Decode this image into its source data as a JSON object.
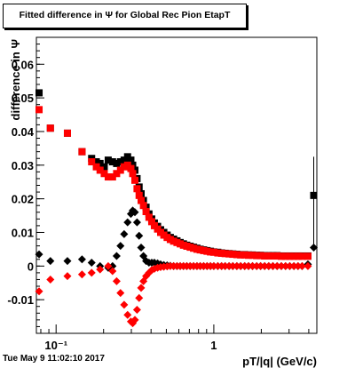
{
  "header": {
    "title": "Fitted difference in  Ψ  for Global Rec Pion EtapT"
  },
  "footer": {
    "timestamp": "Tue May  9 11:02:10 2017"
  },
  "chart_data": {
    "type": "scatter",
    "title": "Fitted difference in  Ψ  for Global Rec Pion EtapT",
    "xlabel": "pT/|q| (GeV/c)",
    "ylabel": "difference in  Ψ",
    "x_scale": "log",
    "xlim": [
      0.075,
      4.5
    ],
    "ylim": [
      -0.02,
      0.068
    ],
    "x_tick_labels": [
      {
        "x": 0.1,
        "label": "10⁻¹"
      },
      {
        "x": 1,
        "label": "1"
      }
    ],
    "y_ticks": [
      -0.01,
      0,
      0.01,
      0.02,
      0.03,
      0.04,
      0.05,
      0.06
    ],
    "y_tick_labels": [
      "-0.01",
      "0",
      "0.01",
      "0.02",
      "0.03",
      "0.04",
      "0.05",
      "0.06"
    ],
    "grid": false,
    "series": [
      {
        "marker": "square",
        "color": "#000000",
        "points": [
          [
            0.078,
            0.0515
          ],
          [
            0.092,
            0.041
          ],
          [
            0.118,
            0.0395
          ],
          [
            0.146,
            0.034
          ],
          [
            0.168,
            0.032
          ],
          [
            0.18,
            0.031
          ],
          [
            0.19,
            0.0305
          ],
          [
            0.202,
            0.0295
          ],
          [
            0.214,
            0.0315
          ],
          [
            0.228,
            0.031
          ],
          [
            0.242,
            0.0305
          ],
          [
            0.256,
            0.031
          ],
          [
            0.27,
            0.0315
          ],
          [
            0.284,
            0.0325
          ],
          [
            0.298,
            0.0315
          ],
          [
            0.306,
            0.03
          ],
          [
            0.316,
            0.0285
          ],
          [
            0.326,
            0.026
          ],
          [
            0.336,
            0.0235
          ],
          [
            0.346,
            0.0215
          ],
          [
            0.358,
            0.0195
          ],
          [
            0.372,
            0.0175
          ],
          [
            0.388,
            0.0155
          ],
          [
            0.404,
            0.014
          ],
          [
            0.42,
            0.0128
          ],
          [
            0.44,
            0.0118
          ],
          [
            0.46,
            0.0108
          ],
          [
            0.482,
            0.01
          ],
          [
            0.506,
            0.0092
          ],
          [
            0.53,
            0.0085
          ],
          [
            0.556,
            0.008
          ],
          [
            0.584,
            0.0075
          ],
          [
            0.612,
            0.007
          ],
          [
            0.642,
            0.0066
          ],
          [
            0.674,
            0.0062
          ],
          [
            0.708,
            0.0059
          ],
          [
            0.744,
            0.0056
          ],
          [
            0.782,
            0.0053
          ],
          [
            0.82,
            0.005
          ],
          [
            0.862,
            0.0048
          ],
          [
            0.906,
            0.0046
          ],
          [
            0.952,
            0.0044
          ],
          [
            1.0,
            0.0042
          ],
          [
            1.06,
            0.0041
          ],
          [
            1.12,
            0.0039
          ],
          [
            1.18,
            0.0038
          ],
          [
            1.25,
            0.0037
          ],
          [
            1.32,
            0.0036
          ],
          [
            1.4,
            0.0035
          ],
          [
            1.48,
            0.0034
          ],
          [
            1.57,
            0.0034
          ],
          [
            1.66,
            0.0033
          ],
          [
            1.76,
            0.0033
          ],
          [
            1.87,
            0.0032
          ],
          [
            1.98,
            0.0032
          ],
          [
            2.1,
            0.0031
          ],
          [
            2.23,
            0.0031
          ],
          [
            2.37,
            0.0031
          ],
          [
            2.52,
            0.0031
          ],
          [
            2.68,
            0.003
          ],
          [
            2.85,
            0.003
          ],
          [
            3.03,
            0.003
          ],
          [
            3.22,
            0.003
          ],
          [
            3.42,
            0.003
          ],
          [
            3.63,
            0.003
          ],
          [
            3.95,
            0.003
          ],
          [
            4.3,
            0.021
          ]
        ]
      },
      {
        "marker": "square",
        "color": "#ff0000",
        "points": [
          [
            0.078,
            0.0465
          ],
          [
            0.092,
            0.041
          ],
          [
            0.118,
            0.0395
          ],
          [
            0.146,
            0.034
          ],
          [
            0.168,
            0.031
          ],
          [
            0.18,
            0.0295
          ],
          [
            0.19,
            0.0285
          ],
          [
            0.202,
            0.0275
          ],
          [
            0.214,
            0.0265
          ],
          [
            0.228,
            0.0265
          ],
          [
            0.242,
            0.0275
          ],
          [
            0.256,
            0.0285
          ],
          [
            0.27,
            0.0295
          ],
          [
            0.284,
            0.03
          ],
          [
            0.298,
            0.029
          ],
          [
            0.306,
            0.0275
          ],
          [
            0.316,
            0.0255
          ],
          [
            0.326,
            0.023
          ],
          [
            0.336,
            0.021
          ],
          [
            0.346,
            0.0195
          ],
          [
            0.358,
            0.018
          ],
          [
            0.372,
            0.0162
          ],
          [
            0.388,
            0.0145
          ],
          [
            0.404,
            0.0132
          ],
          [
            0.42,
            0.012
          ],
          [
            0.44,
            0.011
          ],
          [
            0.46,
            0.01
          ],
          [
            0.482,
            0.0092
          ],
          [
            0.506,
            0.0085
          ],
          [
            0.53,
            0.0079
          ],
          [
            0.556,
            0.0074
          ],
          [
            0.584,
            0.007
          ],
          [
            0.612,
            0.0066
          ],
          [
            0.642,
            0.0062
          ],
          [
            0.674,
            0.0059
          ],
          [
            0.708,
            0.0056
          ],
          [
            0.744,
            0.0053
          ],
          [
            0.782,
            0.005
          ],
          [
            0.82,
            0.0048
          ],
          [
            0.862,
            0.0046
          ],
          [
            0.906,
            0.0044
          ],
          [
            0.952,
            0.0042
          ],
          [
            1.0,
            0.0041
          ],
          [
            1.06,
            0.0039
          ],
          [
            1.12,
            0.0038
          ],
          [
            1.18,
            0.0037
          ],
          [
            1.25,
            0.0036
          ],
          [
            1.32,
            0.0035
          ],
          [
            1.4,
            0.0034
          ],
          [
            1.48,
            0.0033
          ],
          [
            1.57,
            0.0033
          ],
          [
            1.66,
            0.0032
          ],
          [
            1.76,
            0.0032
          ],
          [
            1.87,
            0.0031
          ],
          [
            1.98,
            0.0031
          ],
          [
            2.1,
            0.003
          ],
          [
            2.23,
            0.003
          ],
          [
            2.37,
            0.003
          ],
          [
            2.52,
            0.003
          ],
          [
            2.68,
            0.0029
          ],
          [
            2.85,
            0.0029
          ],
          [
            3.03,
            0.0029
          ],
          [
            3.22,
            0.0029
          ],
          [
            3.42,
            0.0029
          ],
          [
            3.63,
            0.0029
          ],
          [
            3.95,
            0.0029
          ]
        ]
      },
      {
        "marker": "diamond",
        "color": "#000000",
        "points": [
          [
            0.078,
            0.0035
          ],
          [
            0.092,
            0.0015
          ],
          [
            0.118,
            0.0015
          ],
          [
            0.146,
            0.002
          ],
          [
            0.168,
            0.001
          ],
          [
            0.19,
            0.0
          ],
          [
            0.214,
            -0.0005
          ],
          [
            0.228,
            0.0
          ],
          [
            0.242,
            0.003
          ],
          [
            0.256,
            0.006
          ],
          [
            0.27,
            0.0095
          ],
          [
            0.284,
            0.013
          ],
          [
            0.298,
            0.0155
          ],
          [
            0.306,
            0.0165
          ],
          [
            0.316,
            0.016
          ],
          [
            0.326,
            0.013
          ],
          [
            0.336,
            0.009
          ],
          [
            0.346,
            0.0055
          ],
          [
            0.358,
            0.003
          ],
          [
            0.372,
            0.0015
          ],
          [
            0.388,
            0.001
          ],
          [
            0.404,
            0.001
          ],
          [
            0.42,
            0.001
          ],
          [
            0.44,
            0.0008
          ],
          [
            0.46,
            0.0005
          ],
          [
            0.482,
            0.0003
          ],
          [
            0.506,
            0.0002
          ],
          [
            0.53,
            0.0001
          ],
          [
            0.556,
            0.0
          ],
          [
            0.584,
            0.0
          ],
          [
            0.612,
            0.0
          ],
          [
            0.642,
            0.0
          ],
          [
            0.674,
            0.0
          ],
          [
            0.708,
            0.0
          ],
          [
            0.744,
            0.0
          ],
          [
            0.782,
            0.0
          ],
          [
            0.82,
            0.0
          ],
          [
            0.862,
            0.0
          ],
          [
            0.906,
            0.0
          ],
          [
            0.952,
            0.0
          ],
          [
            1.0,
            0.0
          ],
          [
            1.06,
            0.0
          ],
          [
            1.12,
            0.0
          ],
          [
            1.18,
            0.0
          ],
          [
            1.25,
            0.0
          ],
          [
            1.32,
            0.0
          ],
          [
            1.4,
            0.0
          ],
          [
            1.48,
            0.0
          ],
          [
            1.57,
            0.0
          ],
          [
            1.66,
            0.0
          ],
          [
            1.76,
            0.0
          ],
          [
            1.87,
            0.0
          ],
          [
            1.98,
            0.0
          ],
          [
            2.1,
            0.0
          ],
          [
            2.23,
            0.0
          ],
          [
            2.37,
            0.0
          ],
          [
            2.52,
            0.0
          ],
          [
            2.68,
            0.0
          ],
          [
            2.85,
            0.0
          ],
          [
            3.03,
            0.0
          ],
          [
            3.22,
            0.0
          ],
          [
            3.42,
            0.0
          ],
          [
            3.63,
            0.0
          ],
          [
            3.95,
            0.0005
          ],
          [
            4.3,
            0.0055
          ]
        ]
      },
      {
        "marker": "diamond",
        "color": "#ff0000",
        "points": [
          [
            0.078,
            -0.0075
          ],
          [
            0.092,
            -0.004
          ],
          [
            0.118,
            -0.003
          ],
          [
            0.146,
            -0.0025
          ],
          [
            0.168,
            -0.002
          ],
          [
            0.19,
            -0.001
          ],
          [
            0.214,
            0.0
          ],
          [
            0.228,
            -0.0015
          ],
          [
            0.242,
            -0.0045
          ],
          [
            0.256,
            -0.008
          ],
          [
            0.27,
            -0.0115
          ],
          [
            0.284,
            -0.0145
          ],
          [
            0.298,
            -0.0165
          ],
          [
            0.306,
            -0.017
          ],
          [
            0.316,
            -0.016
          ],
          [
            0.326,
            -0.013
          ],
          [
            0.336,
            -0.0095
          ],
          [
            0.346,
            -0.0065
          ],
          [
            0.358,
            -0.0045
          ],
          [
            0.372,
            -0.003
          ],
          [
            0.388,
            -0.002
          ],
          [
            0.404,
            -0.0012
          ],
          [
            0.42,
            -0.0008
          ],
          [
            0.44,
            -0.0005
          ],
          [
            0.46,
            -0.0003
          ],
          [
            0.482,
            -0.0002
          ],
          [
            0.506,
            -0.0001
          ],
          [
            0.53,
            0.0
          ],
          [
            0.556,
            0.0
          ],
          [
            0.584,
            0.0
          ],
          [
            0.612,
            0.0
          ],
          [
            0.642,
            0.0
          ],
          [
            0.674,
            0.0
          ],
          [
            0.708,
            0.0
          ],
          [
            0.744,
            0.0
          ],
          [
            0.782,
            0.0
          ],
          [
            0.82,
            0.0
          ],
          [
            0.862,
            0.0
          ],
          [
            0.906,
            0.0
          ],
          [
            0.952,
            0.0
          ],
          [
            1.0,
            0.0
          ],
          [
            1.06,
            0.0
          ],
          [
            1.12,
            0.0
          ],
          [
            1.18,
            0.0
          ],
          [
            1.25,
            0.0
          ],
          [
            1.32,
            0.0
          ],
          [
            1.4,
            0.0
          ],
          [
            1.48,
            0.0
          ],
          [
            1.57,
            0.0
          ],
          [
            1.66,
            0.0
          ],
          [
            1.76,
            0.0
          ],
          [
            1.87,
            0.0
          ],
          [
            1.98,
            0.0
          ],
          [
            2.1,
            0.0
          ],
          [
            2.23,
            0.0
          ],
          [
            2.37,
            0.0
          ],
          [
            2.52,
            0.0
          ],
          [
            2.68,
            0.0
          ],
          [
            2.85,
            0.0
          ],
          [
            3.03,
            0.0
          ],
          [
            3.22,
            0.0
          ],
          [
            3.42,
            0.0
          ],
          [
            3.63,
            0.0
          ],
          [
            3.95,
            0.0
          ]
        ]
      }
    ],
    "error_bars": [
      {
        "x": 4.3,
        "ylow": 0.0055,
        "yhigh": 0.0325,
        "color": "#000000"
      }
    ]
  }
}
